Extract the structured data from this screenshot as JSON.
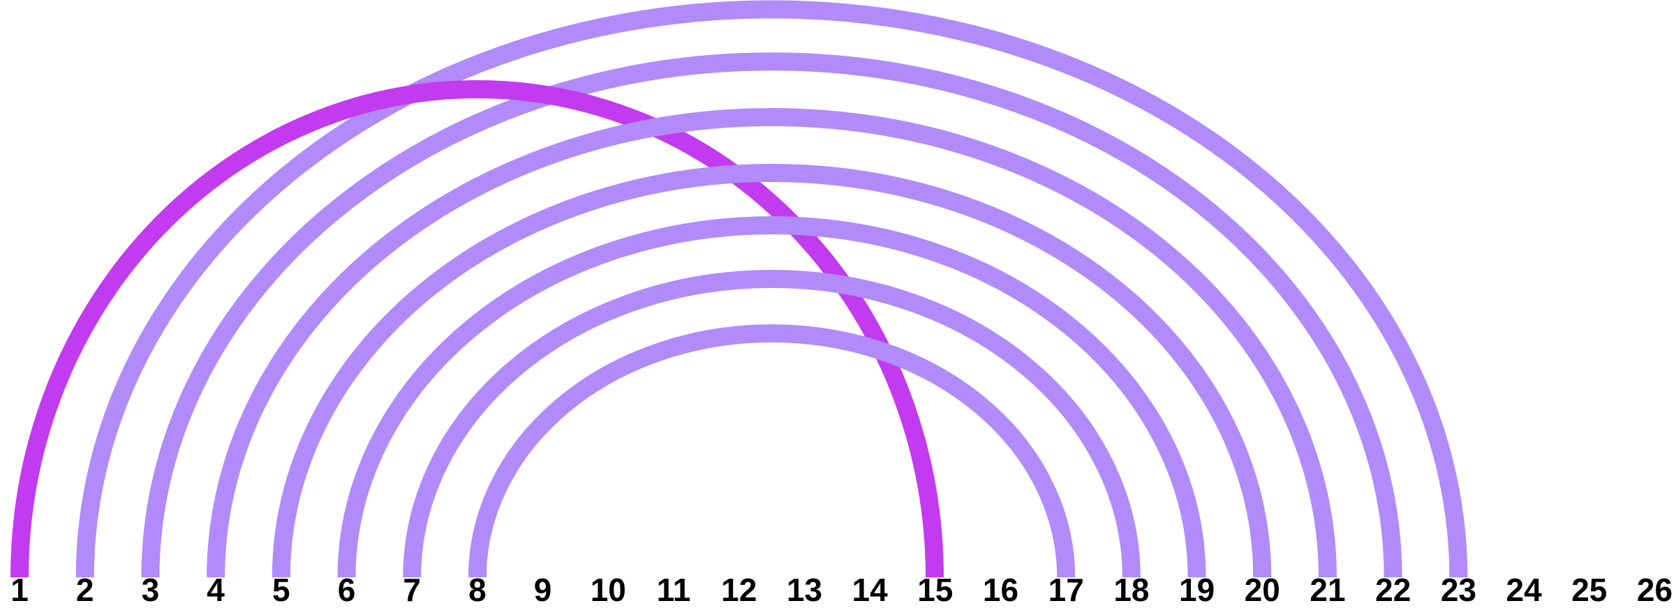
{
  "diagram": {
    "type": "arc-diagram",
    "nodes": [
      "1",
      "2",
      "3",
      "4",
      "5",
      "6",
      "7",
      "8",
      "9",
      "10",
      "11",
      "12",
      "13",
      "14",
      "15",
      "16",
      "17",
      "18",
      "19",
      "20",
      "21",
      "22",
      "23",
      "24",
      "25",
      "26"
    ],
    "arcs": [
      {
        "from": 1,
        "to": 15,
        "color": "#c23bf0"
      },
      {
        "from": 2,
        "to": 22,
        "color": "#b18bfa"
      },
      {
        "from": 3,
        "to": 21,
        "color": "#b18bfa"
      },
      {
        "from": 4,
        "to": 20,
        "color": "#b18bfa"
      },
      {
        "from": 5,
        "to": 19,
        "color": "#b18bfa"
      },
      {
        "from": 6,
        "to": 18,
        "color": "#b18bfa"
      },
      {
        "from": 7,
        "to": 17,
        "color": "#b18bfa"
      },
      {
        "from": 8,
        "to": 16,
        "color": "#b18bfa"
      },
      {
        "from": 1,
        "to": 23,
        "color": "#b18bfa",
        "skip": true
      }
    ]
  }
}
